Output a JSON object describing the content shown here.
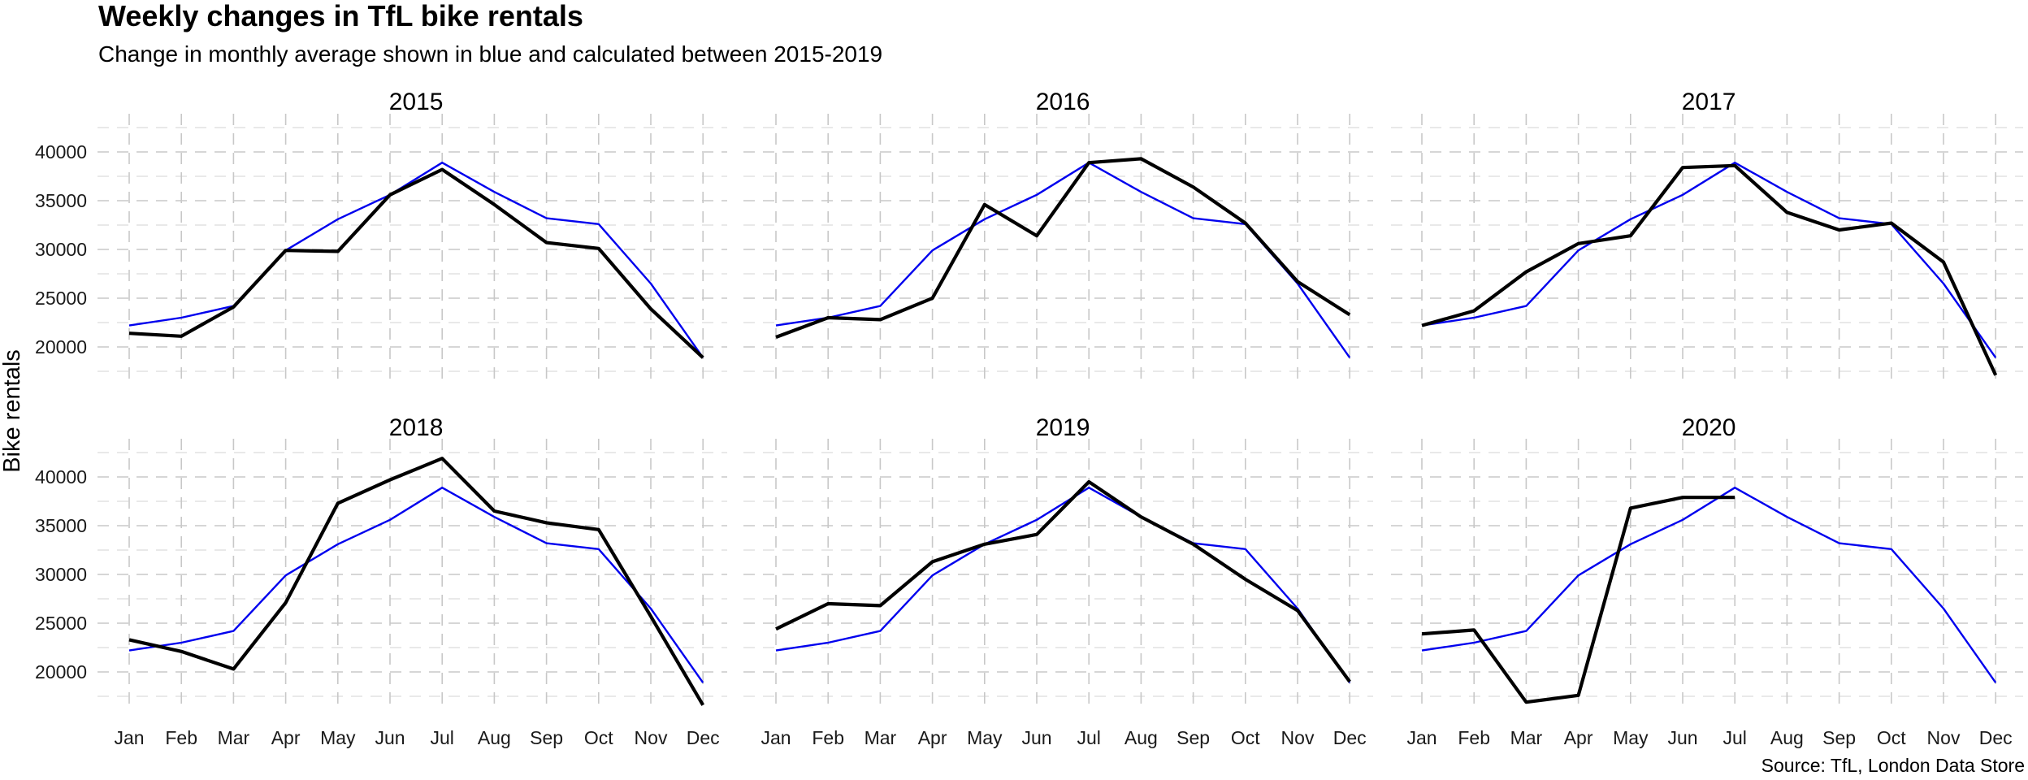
{
  "title": "Weekly changes in TfL bike rentals",
  "subtitle": "Change in monthly average shown in blue and calculated between 2015-2019",
  "caption": "Source: TfL, London Data Store",
  "chart_data": {
    "type": "line",
    "ylabel": "Bike rentals",
    "xlabel": "",
    "categories": [
      "Jan",
      "Feb",
      "Mar",
      "Apr",
      "May",
      "Jun",
      "Jul",
      "Aug",
      "Sep",
      "Oct",
      "Nov",
      "Dec"
    ],
    "yticks": [
      20000,
      25000,
      30000,
      35000,
      40000
    ],
    "ylim": [
      16000,
      43000
    ],
    "grid": true,
    "colors": {
      "actual": "#000000",
      "average": "#0000ee"
    },
    "average": [
      22200,
      23000,
      24200,
      29900,
      33100,
      35600,
      38900,
      35900,
      33200,
      32600,
      26500,
      18900
    ],
    "facets": [
      {
        "label": "2015",
        "values": [
          21400,
          21100,
          24100,
          29900,
          29800,
          35600,
          38200,
          34600,
          30700,
          30100,
          23900,
          18900
        ]
      },
      {
        "label": "2016",
        "values": [
          21000,
          23000,
          22800,
          25000,
          34600,
          31400,
          38900,
          39300,
          36400,
          32700,
          26700,
          23300
        ]
      },
      {
        "label": "2017",
        "values": [
          22200,
          23700,
          27700,
          30600,
          31400,
          38400,
          38600,
          33800,
          32000,
          32700,
          28700,
          17100
        ]
      },
      {
        "label": "2018",
        "values": [
          23300,
          22100,
          20300,
          27100,
          37300,
          39700,
          41900,
          36500,
          35300,
          34600,
          25700,
          16600
        ]
      },
      {
        "label": "2019",
        "values": [
          24400,
          27000,
          26800,
          31300,
          33100,
          34100,
          39500,
          35900,
          33100,
          29500,
          26300,
          19000
        ]
      },
      {
        "label": "2020",
        "values": [
          23900,
          24300,
          16900,
          17600,
          36800,
          37900,
          37900
        ]
      }
    ]
  }
}
